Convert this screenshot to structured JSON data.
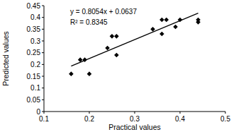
{
  "chart_data": {
    "type": "scatter",
    "x_label": "Practical values",
    "y_label": "Predicted values",
    "annotations": [
      "y = 0.8054x + 0.0637",
      "R² = 0.8345"
    ],
    "xlim": [
      0.1,
      0.5
    ],
    "ylim": [
      0,
      0.45
    ],
    "xticks": [
      0.1,
      0.2,
      0.3,
      0.4,
      0.5
    ],
    "yticks": [
      0,
      0.05,
      0.1,
      0.15,
      0.2,
      0.25,
      0.3,
      0.35,
      0.4,
      0.45
    ],
    "grid": false,
    "series": [
      {
        "type": "scatter",
        "marker": "diamond",
        "color": "#000000",
        "x": [
          0.16,
          0.18,
          0.19,
          0.2,
          0.24,
          0.25,
          0.26,
          0.26,
          0.34,
          0.36,
          0.36,
          0.37,
          0.39,
          0.4,
          0.44,
          0.44
        ],
        "values": [
          0.16,
          0.22,
          0.22,
          0.16,
          0.27,
          0.32,
          0.32,
          0.24,
          0.35,
          0.39,
          0.33,
          0.39,
          0.36,
          0.39,
          0.38,
          0.39
        ]
      },
      {
        "type": "line",
        "line_style": "solid",
        "color": "#000000",
        "x": [
          0.16,
          0.44
        ],
        "values": [
          0.193,
          0.418
        ]
      }
    ]
  }
}
